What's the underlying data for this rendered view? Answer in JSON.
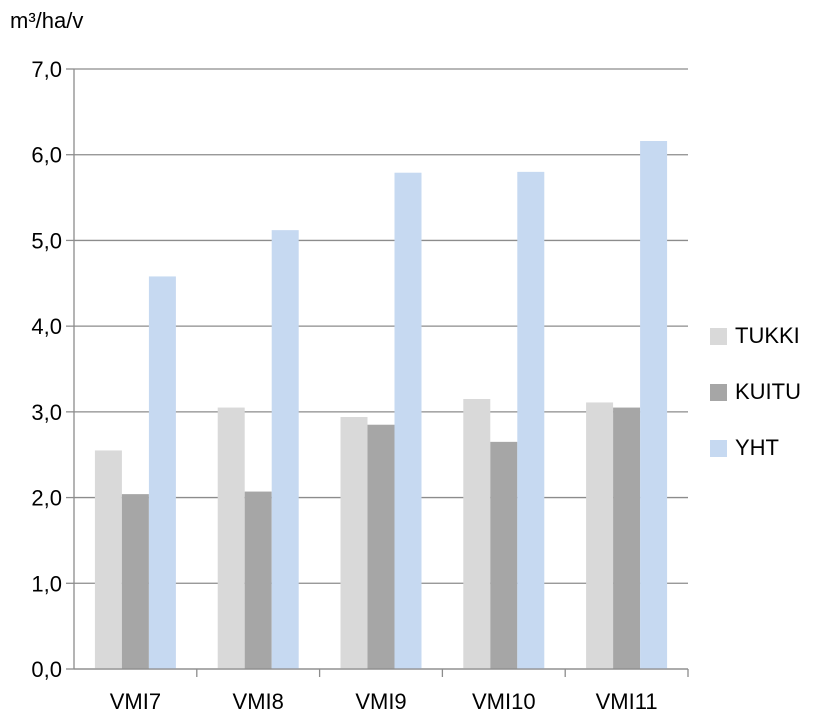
{
  "chart_data": {
    "type": "bar",
    "title": "",
    "xlabel": "",
    "ylabel": "m³/ha/v",
    "categories": [
      "VMI7",
      "VMI8",
      "VMI9",
      "VMI10",
      "VMI11"
    ],
    "series": [
      {
        "name": "TUKKI",
        "color": "#d9d9d9",
        "values": [
          2.55,
          3.05,
          2.94,
          3.15,
          3.11
        ]
      },
      {
        "name": "KUITU",
        "color": "#a6a6a6",
        "values": [
          2.04,
          2.07,
          2.85,
          2.65,
          3.05
        ]
      },
      {
        "name": "YHT",
        "color": "#c6d9f1",
        "values": [
          4.58,
          5.12,
          5.79,
          5.8,
          6.16
        ]
      }
    ],
    "ylim": [
      0,
      7
    ],
    "yticks": [
      "0,0",
      "1,0",
      "2,0",
      "3,0",
      "4,0",
      "5,0",
      "6,0",
      "7,0"
    ],
    "grid": true,
    "legend_position": "right"
  }
}
